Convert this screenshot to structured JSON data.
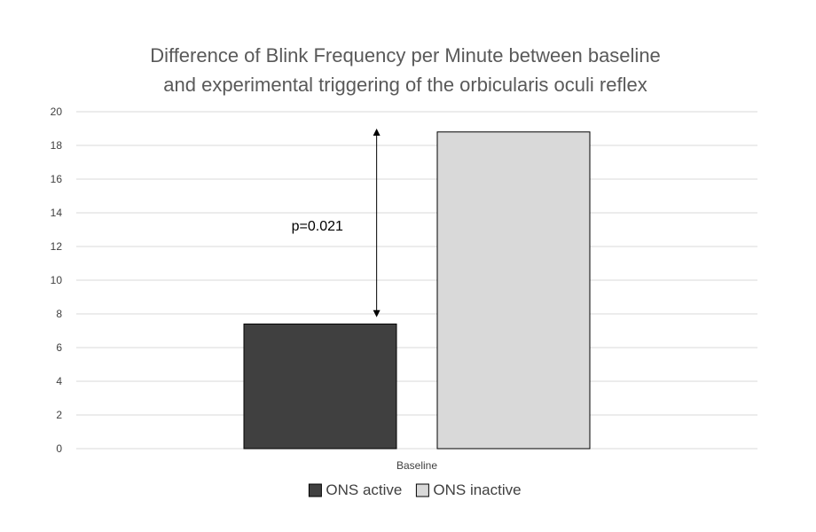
{
  "chart_data": {
    "type": "bar",
    "title_lines": [
      "Difference of Blink Frequency per Minute between baseline",
      "and experimental triggering of the orbicularis oculi reflex"
    ],
    "categories": [
      "Baseline"
    ],
    "series": [
      {
        "name": "ONS active",
        "values": [
          7.4
        ],
        "color": "#404040"
      },
      {
        "name": "ONS inactive",
        "values": [
          18.8
        ],
        "color": "#d9d9d9"
      }
    ],
    "ylim": [
      0,
      20
    ],
    "yticks": [
      "0",
      "2",
      "4",
      "6",
      "8",
      "10",
      "12",
      "14",
      "16",
      "18",
      "20"
    ],
    "grid": true,
    "legend_position": "bottom",
    "annotation": {
      "text": "p=0.021",
      "from_value": 7.8,
      "to_value": 19.0
    }
  }
}
